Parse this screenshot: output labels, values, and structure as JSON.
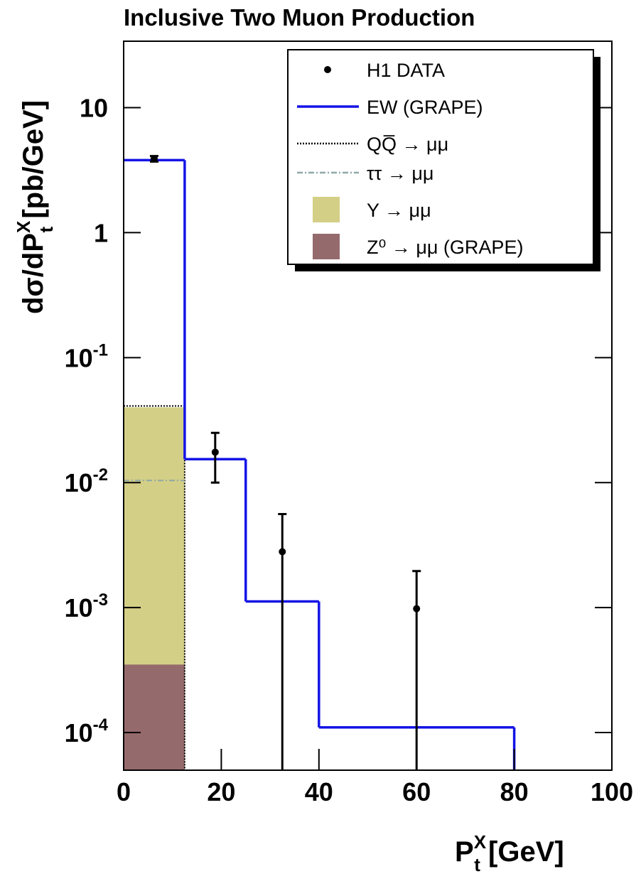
{
  "chart_data": {
    "type": "histogram",
    "title": "Inclusive Two  Muon Production",
    "ylabel": {
      "main": "dσ/dP",
      "sup": "X",
      "sub": "t",
      "unit": " [pb/GeV]"
    },
    "xlabel": {
      "main": "P",
      "sup": "X",
      "sub": "t",
      "unit": "  [GeV]"
    },
    "xlim": [
      0,
      100
    ],
    "xticks": [
      0,
      20,
      40,
      60,
      80,
      100
    ],
    "ylim": [
      5e-05,
      34
    ],
    "log_y": true,
    "yticks": [
      {
        "value": 0.0001,
        "label": "10-4"
      },
      {
        "value": 0.001,
        "label": "10-3"
      },
      {
        "value": 0.01,
        "label": "10-2"
      },
      {
        "value": 0.1,
        "label": "10-1"
      },
      1,
      10
    ],
    "bins": [
      0,
      12.5,
      25,
      40,
      80,
      100
    ],
    "series": [
      {
        "name": "Y → μμ",
        "color": "#d4cf86",
        "style": "fill",
        "values": [
          0.04,
          null,
          null,
          null,
          null
        ]
      },
      {
        "name": "Z⁰ → μμ (GRAPE)",
        "color": "#956a6d",
        "style": "fill",
        "values": [
          0.00035,
          null,
          null,
          null,
          null
        ]
      },
      {
        "name": "QQ̅  → μμ",
        "color": "#000000",
        "style": "dotted",
        "values": [
          0.041,
          null,
          null,
          null,
          null
        ]
      },
      {
        "name": "ττ → μμ",
        "color": "#8fa8a8",
        "style": "dashdot",
        "values": [
          0.0104,
          null,
          null,
          null,
          null
        ]
      },
      {
        "name": "EW (GRAPE)",
        "color": "#1414e6",
        "style": "step",
        "values": [
          3.8,
          0.0154,
          0.00112,
          0.00011,
          null
        ]
      },
      {
        "name": "H1 DATA",
        "color": "#000000",
        "style": "points",
        "x": [
          6.25,
          18.75,
          32.5,
          60
        ],
        "values": [
          3.9,
          0.0175,
          0.0028,
          0.00098
        ],
        "errors": [
          0.2,
          0.0075,
          0.0028,
          0.00098
        ]
      }
    ],
    "legend_order": [
      5,
      4,
      2,
      3,
      0,
      1
    ],
    "legend": "upper right"
  }
}
